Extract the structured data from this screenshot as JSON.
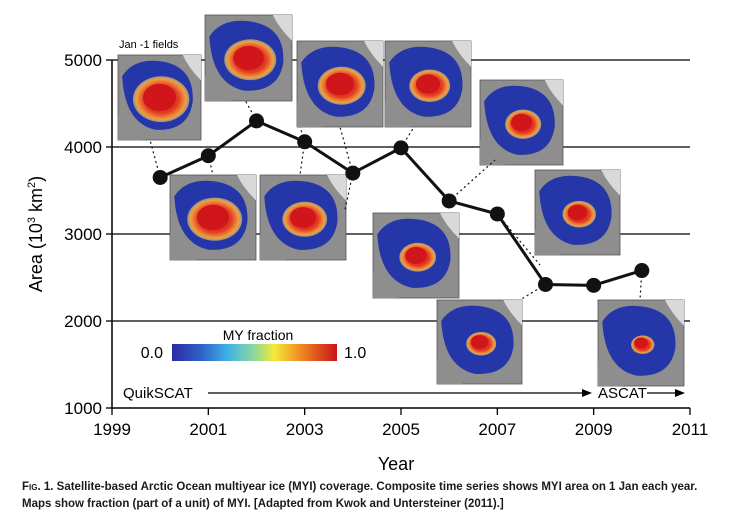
{
  "chart_data": {
    "type": "line",
    "xlabel": "Year",
    "ylabel_main": "Area (10",
    "ylabel_sup": "3",
    "ylabel_tail": " km",
    "ylabel_sup2": "2",
    "ylabel_close": ")",
    "xlim": [
      1999,
      2011
    ],
    "ylim": [
      1000,
      5000
    ],
    "xticks": [
      "1999",
      "2001",
      "2003",
      "2005",
      "2007",
      "2009",
      "2011"
    ],
    "yticks": [
      "1000",
      "2000",
      "3000",
      "4000",
      "5000"
    ],
    "grid": "horizontal",
    "series": [
      {
        "x": [
          2000,
          2001,
          2002,
          2003,
          2004,
          2005,
          2006,
          2007,
          2008,
          2009,
          2010
        ],
        "values": [
          3650,
          3900,
          4300,
          4060,
          3700,
          3990,
          3380,
          3230,
          2420,
          2410,
          2580
        ]
      }
    ],
    "annotations": {
      "jan_label": "Jan -1 fields",
      "colorbar_title": "MY fraction",
      "colorbar_min": "0.0",
      "colorbar_max": "1.0",
      "left_sensor": "QuikSCAT",
      "right_sensor": "ASCAT"
    }
  },
  "colors": {
    "line": "#111111",
    "marker": "#111111",
    "land": "#8e8e8e",
    "grid": "#000000"
  },
  "caption": {
    "fig_label": "Fig. 1.",
    "text": " Satellite-based Arctic Ocean multiyear ice (MYI) coverage. Composite time series shows MYI area on 1 Jan each year. Maps show fraction (part of a unit) of MYI. [Adapted from Kwok and Untersteiner (2011).]"
  }
}
